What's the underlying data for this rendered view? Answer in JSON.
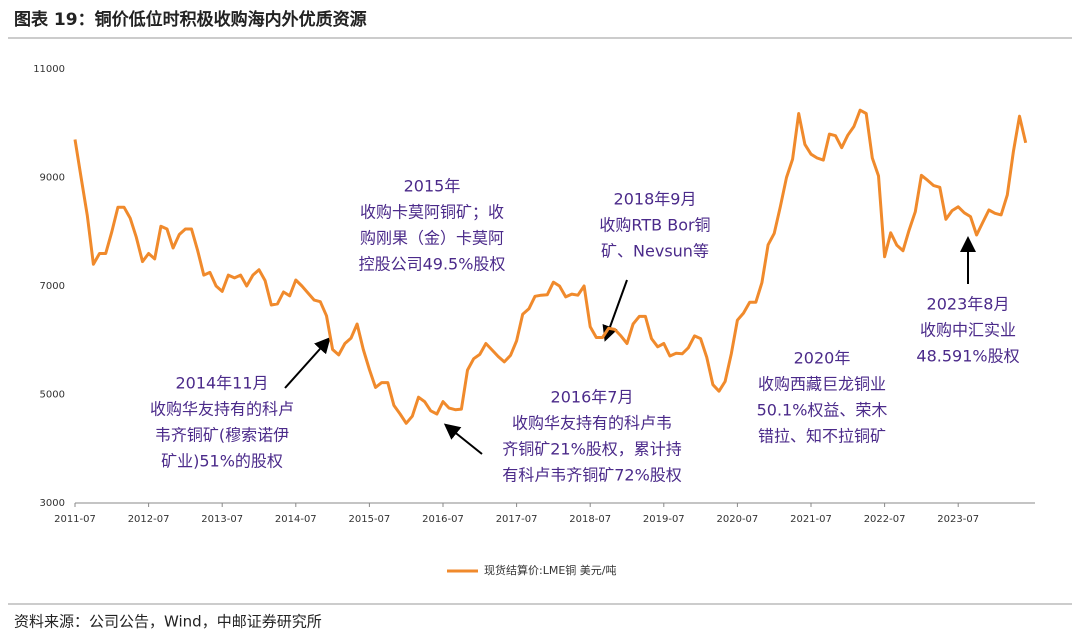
{
  "chart_data": {
    "type": "line",
    "title": "图表 19：铜价低位时积极收购海内外优质资源",
    "source": "资料来源：公司公告，Wind，中邮证券研究所",
    "x": [
      "2011-07",
      "2011-08",
      "2011-09",
      "2011-10",
      "2011-11",
      "2011-12",
      "2012-01",
      "2012-02",
      "2012-03",
      "2012-04",
      "2012-05",
      "2012-06",
      "2012-07",
      "2012-08",
      "2012-09",
      "2012-10",
      "2012-11",
      "2012-12",
      "2013-01",
      "2013-02",
      "2013-03",
      "2013-04",
      "2013-05",
      "2013-06",
      "2013-07",
      "2013-08",
      "2013-09",
      "2013-10",
      "2013-11",
      "2013-12",
      "2014-01",
      "2014-02",
      "2014-03",
      "2014-04",
      "2014-05",
      "2014-06",
      "2014-07",
      "2014-08",
      "2014-09",
      "2014-10",
      "2014-11",
      "2014-12",
      "2015-01",
      "2015-02",
      "2015-03",
      "2015-04",
      "2015-05",
      "2015-06",
      "2015-07",
      "2015-08",
      "2015-09",
      "2015-10",
      "2015-11",
      "2015-12",
      "2016-01",
      "2016-02",
      "2016-03",
      "2016-04",
      "2016-05",
      "2016-06",
      "2016-07",
      "2016-08",
      "2016-09",
      "2016-10",
      "2016-11",
      "2016-12",
      "2017-01",
      "2017-02",
      "2017-03",
      "2017-04",
      "2017-05",
      "2017-06",
      "2017-07",
      "2017-08",
      "2017-09",
      "2017-10",
      "2017-11",
      "2017-12",
      "2018-01",
      "2018-02",
      "2018-03",
      "2018-04",
      "2018-05",
      "2018-06",
      "2018-07",
      "2018-08",
      "2018-09",
      "2018-10",
      "2018-11",
      "2018-12",
      "2019-01",
      "2019-02",
      "2019-03",
      "2019-04",
      "2019-05",
      "2019-06",
      "2019-07",
      "2019-08",
      "2019-09",
      "2019-10",
      "2019-11",
      "2019-12",
      "2020-01",
      "2020-02",
      "2020-03",
      "2020-04",
      "2020-05",
      "2020-06",
      "2020-07",
      "2020-08",
      "2020-09",
      "2020-10",
      "2020-11",
      "2020-12",
      "2021-01",
      "2021-02",
      "2021-03",
      "2021-04",
      "2021-05",
      "2021-06",
      "2021-07",
      "2021-08",
      "2021-09",
      "2021-10",
      "2021-11",
      "2021-12",
      "2022-01",
      "2022-02",
      "2022-03",
      "2022-04",
      "2022-05",
      "2022-06",
      "2022-07",
      "2022-08",
      "2022-09",
      "2022-10",
      "2022-11",
      "2022-12",
      "2023-01",
      "2023-02",
      "2023-03",
      "2023-04",
      "2023-05",
      "2023-06",
      "2023-07",
      "2023-08",
      "2023-09",
      "2023-10",
      "2023-11",
      "2023-12",
      "2024-01",
      "2024-02",
      "2024-03",
      "2024-04",
      "2024-05",
      "2024-06"
    ],
    "series": [
      {
        "name": "现货结算价:LME铜 美元/吨",
        "color": "#f08a2c",
        "values": [
          9700,
          9000,
          8300,
          7400,
          7600,
          7600,
          8000,
          8450,
          8450,
          8250,
          7900,
          7450,
          7600,
          7500,
          8100,
          8050,
          7700,
          7950,
          8050,
          8050,
          7650,
          7200,
          7250,
          7000,
          6900,
          7200,
          7150,
          7200,
          7000,
          7200,
          7300,
          7100,
          6650,
          6670,
          6890,
          6820,
          7110,
          7000,
          6870,
          6740,
          6710,
          6450,
          5830,
          5730,
          5940,
          6040,
          6300,
          5830,
          5460,
          5130,
          5220,
          5220,
          4800,
          4640,
          4470,
          4600,
          4950,
          4870,
          4700,
          4640,
          4870,
          4750,
          4720,
          4730,
          5450,
          5660,
          5740,
          5940,
          5820,
          5700,
          5600,
          5720,
          5990,
          6480,
          6580,
          6810,
          6830,
          6840,
          7070,
          7000,
          6800,
          6850,
          6830,
          7000,
          6250,
          6050,
          6050,
          6220,
          6200,
          6080,
          5940,
          6300,
          6440,
          6440,
          6030,
          5880,
          5940,
          5710,
          5760,
          5750,
          5860,
          6080,
          6030,
          5690,
          5180,
          5060,
          5240,
          5750,
          6370,
          6500,
          6700,
          6700,
          7060,
          7760,
          7970,
          8460,
          9000,
          9340,
          10180,
          9610,
          9430,
          9360,
          9320,
          9800,
          9770,
          9550,
          9780,
          9940,
          10240,
          10180,
          9360,
          9030,
          7540,
          7980,
          7750,
          7650,
          8030,
          8370,
          9040,
          8950,
          8850,
          8820,
          8230,
          8390,
          8460,
          8350,
          8280,
          7940,
          8170,
          8400,
          8340,
          8310,
          8680,
          9480,
          10130,
          9640
        ]
      }
    ],
    "xticks": [
      "2011-07",
      "2012-07",
      "2013-07",
      "2014-07",
      "2015-07",
      "2016-07",
      "2017-07",
      "2018-07",
      "2019-07",
      "2020-07",
      "2021-07",
      "2022-07",
      "2023-07"
    ],
    "ylim": [
      3000,
      11000
    ],
    "yticks": [
      3000,
      5000,
      7000,
      9000,
      11000
    ],
    "grid": false,
    "annotations": [
      {
        "lines": [
          "2015年",
          "收购卡莫阿铜矿；收",
          "购刚果（金）卡莫阿",
          "控股公司49.5%股权"
        ]
      },
      {
        "lines": [
          "2018年9月",
          "收购RTB Bor铜",
          "矿、Nevsun等"
        ]
      },
      {
        "lines": [
          "2014年11月",
          "收购华友持有的科卢",
          "韦齐铜矿(穆索诺伊",
          "矿业)51%的股权"
        ]
      },
      {
        "lines": [
          "2016年7月",
          "收购华友持有的科卢韦",
          "齐铜矿21%股权，累计持",
          "有科卢韦齐铜矿72%股权"
        ]
      },
      {
        "lines": [
          "2020年",
          "收购西藏巨龙铜业",
          "50.1%权益、荣木",
          "错拉、知不拉铜矿"
        ]
      },
      {
        "lines": [
          "2023年8月",
          "收购中汇实业",
          "48.591%股权"
        ]
      }
    ]
  }
}
